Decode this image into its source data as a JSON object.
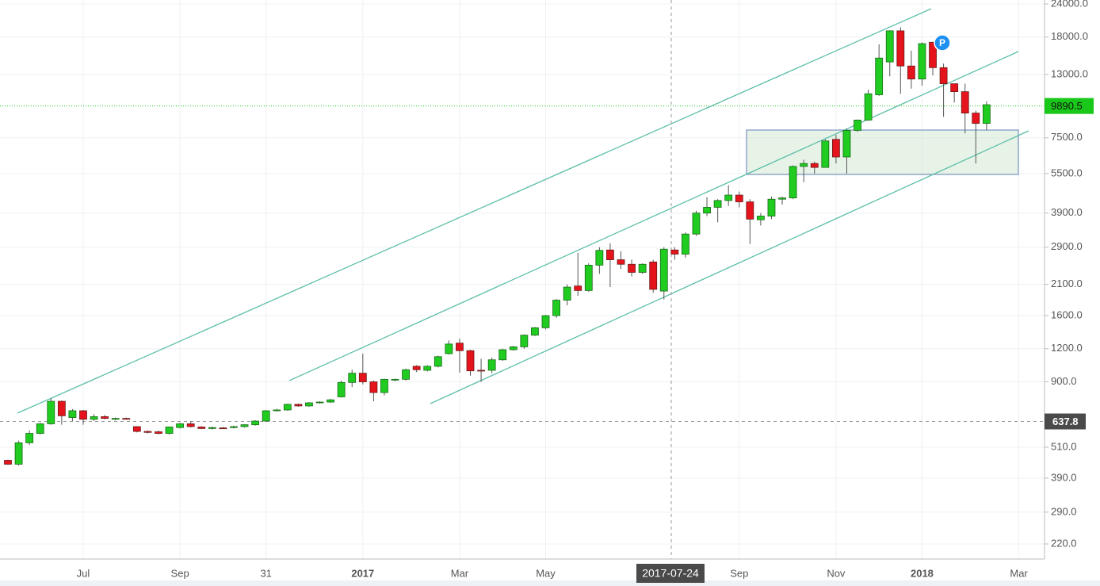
{
  "chart_data": {
    "type": "candlestick",
    "log_scale": true,
    "grid": true,
    "up_color": "#1fcc1f",
    "down_color": "#e5131b",
    "categories": [
      null,
      null,
      null,
      null,
      null,
      null,
      null,
      "Jul",
      null,
      null,
      null,
      null,
      null,
      null,
      null,
      null,
      "Sep",
      null,
      null,
      null,
      null,
      null,
      null,
      null,
      "31",
      null,
      null,
      null,
      null,
      null,
      null,
      null,
      null,
      "2017",
      null,
      null,
      null,
      null,
      null,
      null,
      null,
      null,
      "Mar",
      null,
      null,
      null,
      null,
      null,
      null,
      null,
      "May",
      null,
      null,
      null,
      null,
      null,
      null,
      null,
      null,
      null,
      null,
      null,
      null,
      null,
      null,
      null,
      null,
      null,
      "Sep",
      null,
      null,
      null,
      null,
      null,
      null,
      null,
      null,
      "Nov",
      null,
      null,
      null,
      null,
      null,
      null,
      null,
      "2018",
      null,
      null,
      null,
      null,
      null,
      null,
      null,
      null,
      "Mar"
    ],
    "open": [
      455,
      440,
      530,
      575,
      625,
      760,
      660,
      700,
      650,
      665,
      650,
      655,
      610,
      585,
      583,
      575,
      605,
      625,
      608,
      600,
      603,
      605,
      610,
      620,
      640,
      700,
      705,
      740,
      730,
      750,
      755,
      790,
      895,
      970,
      900,
      820,
      915,
      920,
      1030,
      995,
      1030,
      1150,
      1260,
      1180,
      995,
      995,
      1090,
      1190,
      1220,
      1350,
      1440,
      1600,
      1830,
      2070,
      1990,
      2480,
      2830,
      2600,
      2500,
      2330,
      2550,
      1980,
      2830,
      2730,
      3250,
      3900,
      4100,
      4350,
      4560,
      4300,
      3680,
      3800,
      4400,
      4450,
      5850,
      6000,
      5800,
      7400,
      6350,
      8000,
      8750,
      10900,
      14500,
      19000,
      14000,
      12500,
      17200,
      13800,
      12000,
      11200,
      9300,
      8500,
      null,
      null,
      null
    ],
    "high": [
      458,
      540,
      590,
      630,
      780,
      765,
      710,
      705,
      680,
      675,
      660,
      660,
      612,
      590,
      590,
      610,
      630,
      640,
      612,
      610,
      608,
      615,
      622,
      645,
      705,
      712,
      745,
      745,
      755,
      760,
      775,
      910,
      1000,
      1150,
      910,
      925,
      925,
      1010,
      1040,
      1040,
      1130,
      1290,
      1310,
      1190,
      1100,
      1110,
      1200,
      1230,
      1360,
      1450,
      1610,
      1850,
      2100,
      2760,
      2520,
      2900,
      3000,
      2800,
      2600,
      2520,
      2600,
      2900,
      2900,
      3300,
      3980,
      4480,
      4400,
      4970,
      4700,
      4400,
      3900,
      4500,
      4500,
      5900,
      6200,
      6100,
      7400,
      7700,
      8100,
      8800,
      11400,
      16900,
      19100,
      19600,
      16000,
      17200,
      17300,
      14300,
      12000,
      12000,
      9500,
      10300,
      null,
      null,
      null
    ],
    "low": [
      437,
      435,
      520,
      570,
      620,
      620,
      640,
      620,
      640,
      650,
      645,
      650,
      580,
      575,
      570,
      570,
      600,
      605,
      598,
      595,
      598,
      600,
      605,
      615,
      635,
      695,
      700,
      725,
      725,
      745,
      750,
      785,
      860,
      880,
      760,
      800,
      905,
      910,
      980,
      985,
      1020,
      1140,
      975,
      950,
      900,
      970,
      1080,
      1180,
      1200,
      1340,
      1420,
      1570,
      1750,
      1900,
      1970,
      2300,
      2050,
      2400,
      2250,
      2300,
      1950,
      1840,
      2600,
      2650,
      3200,
      3800,
      3600,
      4150,
      4100,
      2980,
      3500,
      3700,
      4200,
      4400,
      5100,
      5500,
      5800,
      6000,
      5500,
      7900,
      8700,
      10800,
      12800,
      11000,
      11500,
      11800,
      12900,
      9000,
      10200,
      7800,
      6000,
      8000,
      null,
      null,
      null
    ],
    "close": [
      440,
      530,
      575,
      625,
      760,
      670,
      700,
      650,
      665,
      655,
      655,
      650,
      585,
      580,
      575,
      608,
      625,
      610,
      600,
      605,
      602,
      610,
      620,
      640,
      700,
      705,
      740,
      730,
      750,
      755,
      770,
      895,
      970,
      900,
      820,
      920,
      920,
      1000,
      1000,
      1030,
      1120,
      1250,
      1180,
      990,
      990,
      1090,
      1190,
      1220,
      1350,
      1440,
      1600,
      1830,
      2050,
      1990,
      2480,
      2820,
      2600,
      2500,
      2330,
      2500,
      2010,
      2850,
      2730,
      3250,
      3900,
      4100,
      4350,
      4560,
      4300,
      3700,
      3800,
      4400,
      4450,
      5850,
      6000,
      5800,
      7300,
      6350,
      8000,
      8750,
      11000,
      15000,
      19000,
      14000,
      12500,
      17000,
      13800,
      12000,
      11200,
      9300,
      8500,
      10000,
      null,
      null,
      null
    ],
    "ylim": [
      193,
      24840
    ],
    "yticks": [
      {
        "value": 220,
        "label": "220.0"
      },
      {
        "value": 290,
        "label": "290.0"
      },
      {
        "value": 390,
        "label": "390.0"
      },
      {
        "value": 510,
        "label": "510.0"
      },
      {
        "value": 900,
        "label": "900.0"
      },
      {
        "value": 1200,
        "label": "1200.0"
      },
      {
        "value": 1600,
        "label": "1600.0"
      },
      {
        "value": 2100,
        "label": "2100.0"
      },
      {
        "value": 2900,
        "label": "2900.0"
      },
      {
        "value": 3900,
        "label": "3900.0"
      },
      {
        "value": 5500,
        "label": "5500.0"
      },
      {
        "value": 7500,
        "label": "7500.0"
      },
      {
        "value": 13000,
        "label": "13000.0"
      },
      {
        "value": 18000,
        "label": "18000.0"
      },
      {
        "value": 24000,
        "label": "24000.0"
      }
    ],
    "last_price": 9890.5,
    "last_price_color": "#19c819",
    "crosshair_price": 637.8,
    "crosshair_date": "2017-07-24",
    "marker_label": "P"
  }
}
